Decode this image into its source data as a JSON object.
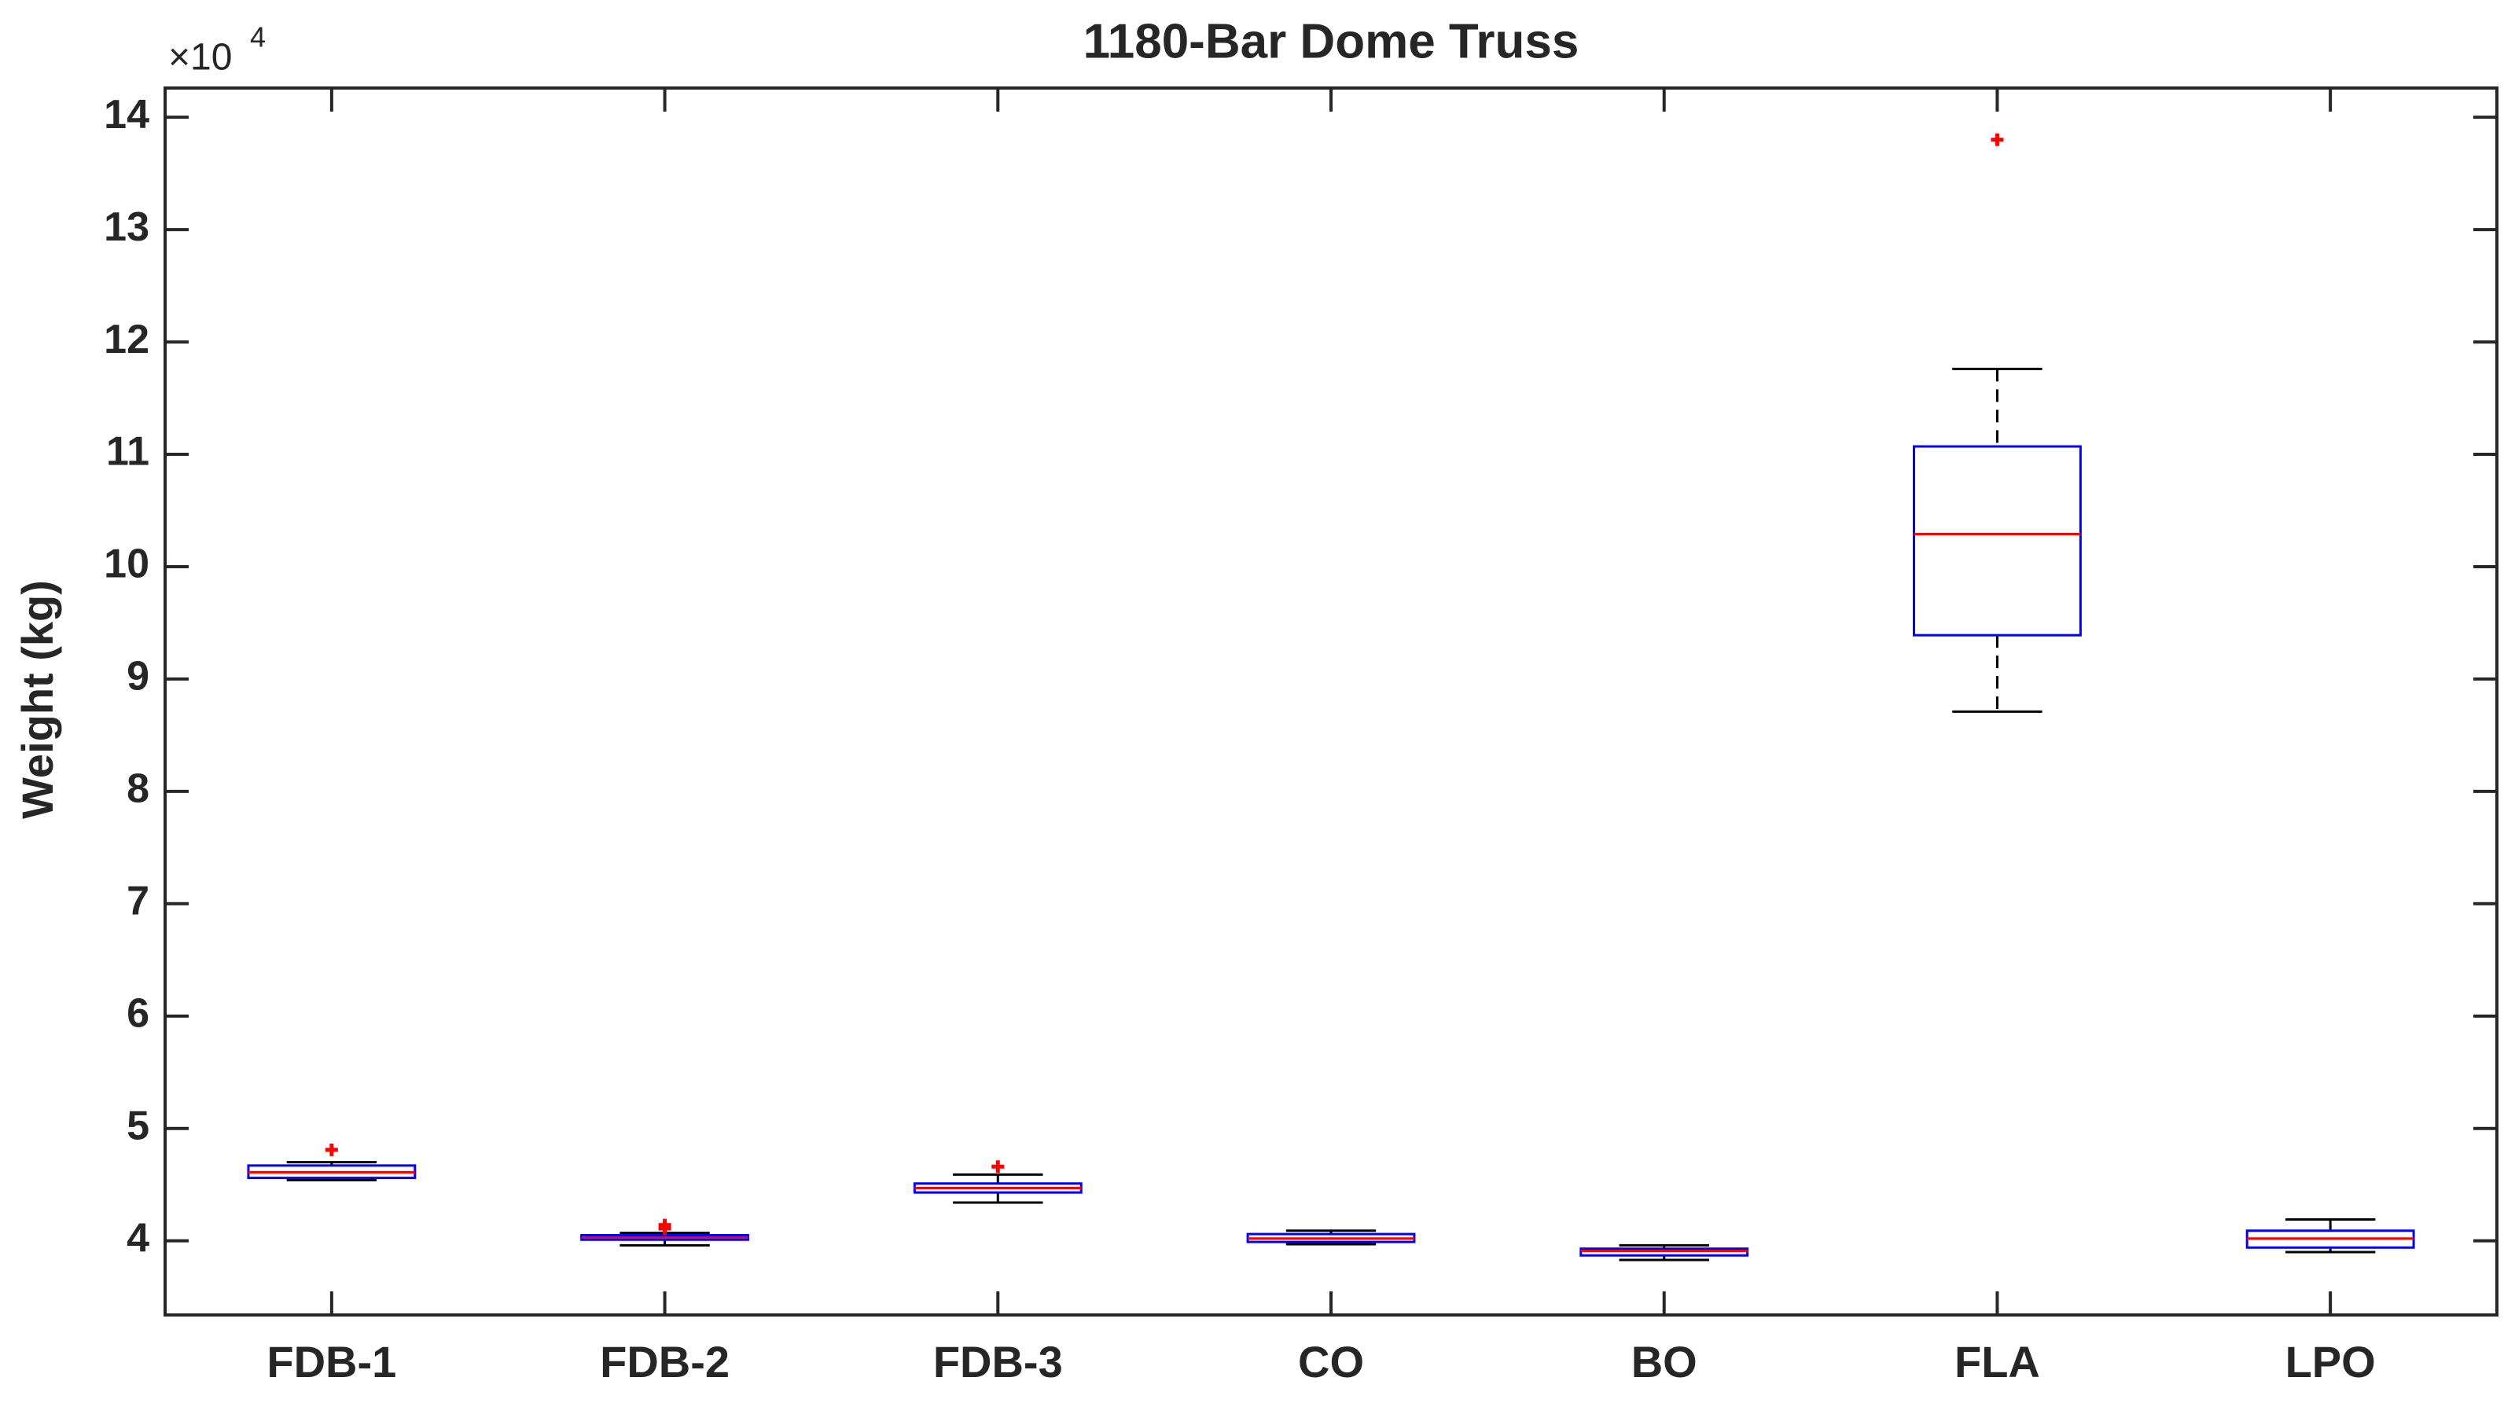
{
  "chart_data": {
    "type": "box",
    "title": "1180-Bar Dome Truss",
    "y_label": "Weight (kg)",
    "y_scale_base": "×10",
    "y_scale_exponent": "4",
    "categories": [
      "FDB-1",
      "FDB-2",
      "FDB-3",
      "CO",
      "BO",
      "FLA",
      "LPO"
    ],
    "stats": [
      {
        "low": 4.54,
        "q1": 4.56,
        "median": 4.61,
        "q3": 4.67,
        "high": 4.7,
        "outliers": [
          4.81
        ]
      },
      {
        "low": 3.96,
        "q1": 4.01,
        "median": 4.03,
        "q3": 4.05,
        "high": 4.07,
        "outliers": [
          4.11,
          4.14
        ]
      },
      {
        "low": 4.34,
        "q1": 4.43,
        "median": 4.47,
        "q3": 4.51,
        "high": 4.59,
        "outliers": [
          4.66
        ]
      },
      {
        "low": 3.97,
        "q1": 3.99,
        "median": 4.02,
        "q3": 4.06,
        "high": 4.09,
        "outliers": []
      },
      {
        "low": 3.83,
        "q1": 3.87,
        "median": 3.91,
        "q3": 3.93,
        "high": 3.96,
        "outliers": []
      },
      {
        "low": 8.71,
        "q1": 9.39,
        "median": 10.29,
        "q3": 11.07,
        "high": 11.76,
        "outliers": [
          13.8
        ]
      },
      {
        "low": 3.9,
        "q1": 3.94,
        "median": 4.02,
        "q3": 4.09,
        "high": 4.19,
        "outliers": []
      }
    ],
    "box_color": "#0000ff",
    "median_color": "#ff0000",
    "whisker_color": "#000000",
    "outlier_color": "#ff0000",
    "ylim": [
      3.34,
      14.26
    ],
    "yticks": [
      4,
      5,
      6,
      7,
      8,
      9,
      10,
      11,
      12,
      13,
      14
    ],
    "grid": false
  }
}
